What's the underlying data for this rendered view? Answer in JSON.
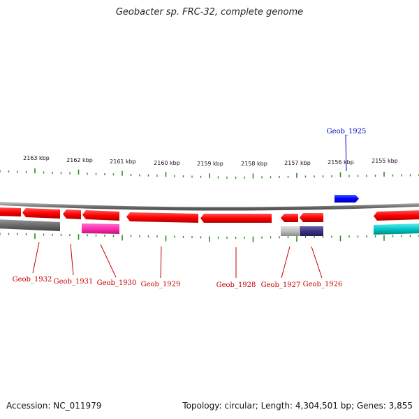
{
  "title": "Geobacter sp. FRC-32, complete genome",
  "footer": {
    "accession": "Accession: NC_011979",
    "topology": "Topology: circular; Length: 4,304,501 bp; Genes: 3,855"
  },
  "ruler_labels": [
    "2163 kbp",
    "2162 kbp",
    "2161 kbp",
    "2160 kbp",
    "2159 kbp",
    "2158 kbp",
    "2157 kbp",
    "2156 kbp",
    "2155 kbp"
  ],
  "gene_labels": {
    "geob_1925": "Geob_1925",
    "geob_1926": "Geob_1926",
    "geob_1927": "Geob_1927",
    "geob_1928": "Geob_1928",
    "geob_1929": "Geob_1929",
    "geob_1930": "Geob_1930",
    "geob_1931": "Geob_1931",
    "geob_1932": "Geob_1932"
  },
  "colors": {
    "genome_ring": "#808080",
    "tick": "#2e8b22",
    "red_gene": "#ff0000",
    "blue_gene": "#0000ff",
    "gray_gene": "#6a6a6a",
    "light_gray_gene": "#bdbdbd",
    "magenta_gene": "#ff30b0",
    "navy_gene": "#3a3480",
    "cyan_gene": "#00c8c8",
    "forward_label": "#0000c8",
    "reverse_label": "#c80000"
  }
}
